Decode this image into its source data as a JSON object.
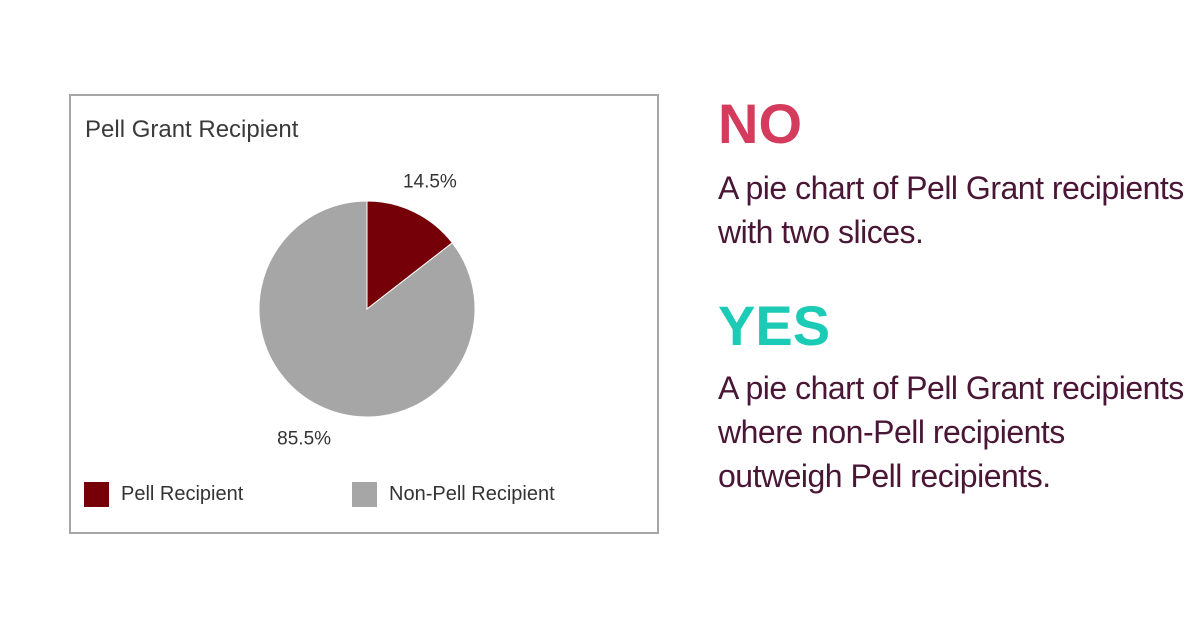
{
  "chart_data": {
    "type": "pie",
    "title": "Pell Grant Recipient",
    "slices": [
      {
        "name": "Pell Recipient",
        "value": 14.5,
        "label": "14.5%",
        "color": "#750008"
      },
      {
        "name": "Non-Pell Recipient",
        "value": 85.5,
        "label": "85.5%",
        "color": "#a6a6a6"
      }
    ],
    "legend_position": "bottom"
  },
  "panel": {
    "no": {
      "heading": "NO",
      "heading_color": "#d43c5e",
      "text": "A pie chart of Pell Grant recipients with two slices."
    },
    "yes": {
      "heading": "YES",
      "heading_color": "#1bcbb5",
      "text": "A pie chart of Pell Grant recipients where non-Pell recipients outweigh Pell recipients."
    },
    "text_color": "#4a1635"
  }
}
